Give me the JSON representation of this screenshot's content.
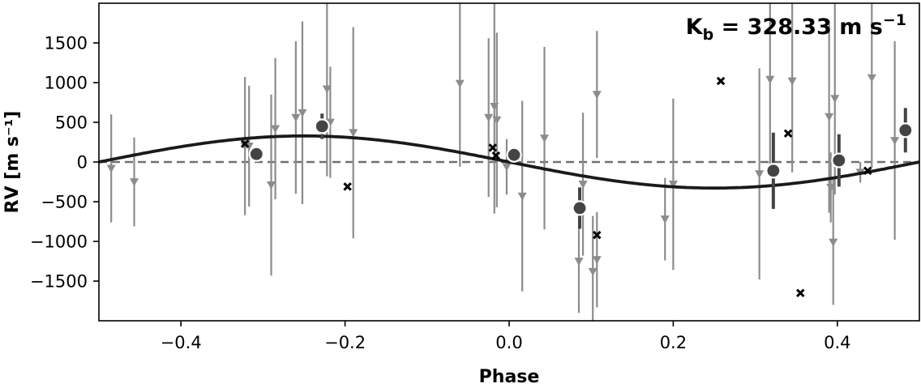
{
  "chart_data": {
    "type": "scatter",
    "title": "",
    "xlabel": "Phase",
    "ylabel": "RV [m s⁻¹]",
    "xlim": [
      -0.5,
      0.5
    ],
    "ylim": [
      -2000,
      2000
    ],
    "xticks": [
      -0.4,
      -0.2,
      0.0,
      0.2,
      0.4
    ],
    "xtick_labels": [
      "−0.4",
      "−0.2",
      "0.0",
      "0.2",
      "0.4"
    ],
    "yticks": [
      -1500,
      -1000,
      -500,
      0,
      500,
      1000,
      1500
    ],
    "ytick_labels": [
      "−1500",
      "−1000",
      "−500",
      "0",
      "500",
      "1000",
      "1500"
    ],
    "annotation": {
      "prefix": "K",
      "subscript": "b",
      "value": " = 328.33 m s",
      "superscript": "−1"
    },
    "zero_line": true,
    "colors": {
      "model": "#1a1a1a",
      "raw": "#8c8c8c",
      "binned": "#444444",
      "crosses": "#000000",
      "zero": "#707070"
    },
    "model": {
      "name": "Keplerian model",
      "K": 328.33,
      "form": "sinusoid",
      "phase_offset": 0.0
    },
    "raw_points": [
      {
        "x": -0.485,
        "y": -80,
        "err": 680
      },
      {
        "x": -0.457,
        "y": -250,
        "err": 560
      },
      {
        "x": -0.322,
        "y": 200,
        "err": 870
      },
      {
        "x": -0.317,
        "y": 200,
        "err": 760
      },
      {
        "x": -0.29,
        "y": -290,
        "err": 1140
      },
      {
        "x": -0.285,
        "y": 420,
        "err": 890
      },
      {
        "x": -0.26,
        "y": 560,
        "err": 960
      },
      {
        "x": -0.252,
        "y": 620,
        "err": 1150
      },
      {
        "x": -0.222,
        "y": 920,
        "err": 1100
      },
      {
        "x": -0.218,
        "y": 500,
        "err": 700
      },
      {
        "x": -0.19,
        "y": 370,
        "err": 1330
      },
      {
        "x": -0.06,
        "y": 990,
        "err": 1050
      },
      {
        "x": -0.025,
        "y": 560,
        "err": 1000
      },
      {
        "x": -0.018,
        "y": 700,
        "err": 1350
      },
      {
        "x": -0.015,
        "y": 530,
        "err": 1100
      },
      {
        "x": -0.003,
        "y": -60,
        "err": 350
      },
      {
        "x": 0.016,
        "y": -430,
        "err": 1200
      },
      {
        "x": 0.043,
        "y": 300,
        "err": 1150
      },
      {
        "x": 0.085,
        "y": -1250,
        "err": 650
      },
      {
        "x": 0.09,
        "y": -280,
        "err": 900
      },
      {
        "x": 0.102,
        "y": -1380,
        "err": 700
      },
      {
        "x": 0.107,
        "y": 850,
        "err": 800
      },
      {
        "x": 0.107,
        "y": -1230,
        "err": 600
      },
      {
        "x": 0.19,
        "y": -720,
        "err": 520
      },
      {
        "x": 0.2,
        "y": -280,
        "err": 1080
      },
      {
        "x": 0.305,
        "y": -150,
        "err": 1330
      },
      {
        "x": 0.318,
        "y": 1040,
        "err": 1140
      },
      {
        "x": 0.345,
        "y": 1020,
        "err": 1150
      },
      {
        "x": 0.39,
        "y": 570,
        "err": 1210
      },
      {
        "x": 0.392,
        "y": -320,
        "err": 440
      },
      {
        "x": 0.395,
        "y": -1010,
        "err": 790
      },
      {
        "x": 0.397,
        "y": 800,
        "err": 1210
      },
      {
        "x": 0.428,
        "y": -130,
        "err": 130
      },
      {
        "x": 0.442,
        "y": 1060,
        "err": 1130
      },
      {
        "x": 0.47,
        "y": 270,
        "err": 1250
      }
    ],
    "cross_points": [
      {
        "x": -0.322,
        "y": 230
      },
      {
        "x": -0.197,
        "y": -310
      },
      {
        "x": -0.02,
        "y": 180
      },
      {
        "x": -0.016,
        "y": 80
      },
      {
        "x": 0.107,
        "y": -920
      },
      {
        "x": 0.258,
        "y": 1020
      },
      {
        "x": 0.34,
        "y": 360
      },
      {
        "x": 0.355,
        "y": -1650
      },
      {
        "x": 0.437,
        "y": -110
      }
    ],
    "binned_points": [
      {
        "x": -0.308,
        "y": 100,
        "err": 0
      },
      {
        "x": -0.228,
        "y": 450,
        "err": 160
      },
      {
        "x": 0.006,
        "y": 90,
        "err": 0
      },
      {
        "x": 0.086,
        "y": -580,
        "err": 260
      },
      {
        "x": 0.322,
        "y": -110,
        "err": 480
      },
      {
        "x": 0.402,
        "y": 20,
        "err": 330
      },
      {
        "x": 0.483,
        "y": 400,
        "err": 280
      }
    ]
  }
}
